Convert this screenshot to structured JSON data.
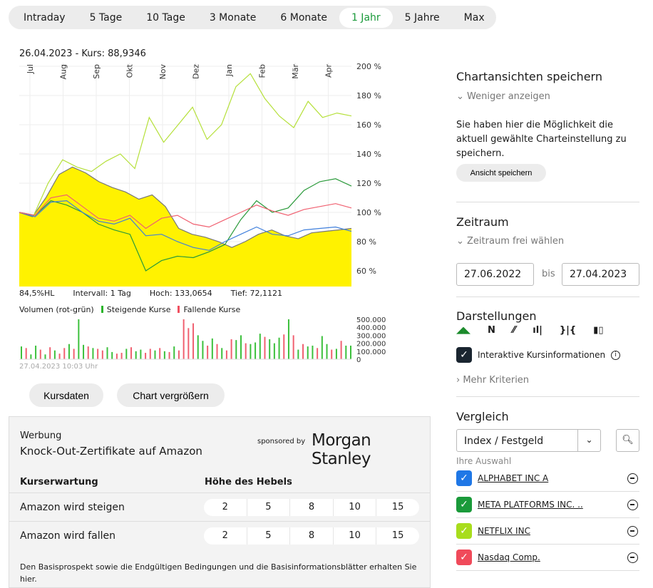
{
  "tabs": [
    "Intraday",
    "5 Tage",
    "10 Tage",
    "3 Monate",
    "6 Monate",
    "1 Jahr",
    "5 Jahre",
    "Max"
  ],
  "active_tab": "1 Jahr",
  "chart_header": "26.04.2023  - Kurs: 88,9346",
  "chart_data": {
    "type": "line",
    "x_ticks": [
      "Jul",
      "Aug",
      "Sep",
      "Okt",
      "Nov",
      "Dez",
      "Jan",
      "Feb",
      "Mär",
      "Apr"
    ],
    "y_ticks": [
      "200 %",
      "180 %",
      "160 %",
      "140 %",
      "120 %",
      "100 %",
      "80 %",
      "60 %"
    ],
    "ylim": [
      50,
      200
    ],
    "series": [
      {
        "name": "Amazon",
        "color": "#fff200",
        "line": "#777777",
        "fill": true,
        "values": [
          100,
          97,
          110,
          126,
          131,
          127,
          121,
          117,
          114,
          109,
          112,
          104,
          89,
          85,
          83,
          80,
          76,
          80,
          85,
          88,
          84,
          82,
          86,
          87,
          88,
          89
        ]
      },
      {
        "name": "NETFLIX INC",
        "color": "#b5e03a",
        "values": [
          100,
          98,
          120,
          136,
          131,
          128,
          135,
          140,
          130,
          165,
          148,
          160,
          172,
          150,
          160,
          186,
          195,
          178,
          166,
          158,
          176,
          165,
          168,
          166
        ]
      },
      {
        "name": "META PLATFORMS INC.",
        "color": "#2a9a3a",
        "values": [
          100,
          98,
          108,
          105,
          100,
          92,
          88,
          85,
          60,
          67,
          70,
          69,
          73,
          78,
          95,
          108,
          100,
          103,
          115,
          121,
          123,
          118
        ]
      },
      {
        "name": "ALPHABET INC A",
        "color": "#3f7fdc",
        "values": [
          100,
          97,
          107,
          108,
          100,
          94,
          92,
          96,
          84,
          85,
          80,
          76,
          74,
          80,
          85,
          90,
          85,
          84,
          88,
          89,
          90,
          87
        ]
      },
      {
        "name": "Nasdaq Comp.",
        "color": "#f06070",
        "values": [
          100,
          98,
          110,
          112,
          104,
          96,
          94,
          98,
          89,
          96,
          98,
          92,
          90,
          95,
          100,
          105,
          101,
          98,
          102,
          104,
          106,
          103
        ]
      }
    ],
    "volume": {
      "label": "Volumen (rot-grün)",
      "up_label": "Steigende Kurse",
      "down_label": "Fallende Kurse",
      "y_ticks": [
        "500.000",
        "400.000",
        "300.000",
        "200.000",
        "100.000",
        "0"
      ],
      "values": [
        160,
        140,
        60,
        170,
        120,
        60,
        150,
        110,
        70,
        140,
        190,
        130,
        500,
        180,
        160,
        140,
        130,
        110,
        150,
        90,
        70,
        80,
        130,
        150,
        100,
        120,
        80,
        130,
        110,
        140,
        100,
        90,
        160,
        110,
        500,
        390,
        450,
        300,
        230,
        170,
        260,
        190,
        140,
        110,
        250,
        240,
        300,
        200,
        190,
        210,
        320,
        280,
        250,
        200,
        270,
        310,
        500,
        300,
        120,
        190,
        160,
        170,
        140,
        290,
        190,
        120,
        130,
        230,
        170,
        170
      ],
      "up": [
        1,
        0,
        1,
        1,
        0,
        1,
        0,
        1,
        0,
        0,
        1,
        0,
        1,
        1,
        0,
        1,
        0,
        0,
        1,
        1,
        0,
        0,
        1,
        0,
        1,
        1,
        0,
        0,
        1,
        0,
        1,
        0,
        1,
        0,
        0,
        0,
        0,
        1,
        1,
        0,
        1,
        0,
        1,
        0,
        0,
        1,
        1,
        0,
        1,
        1,
        1,
        0,
        1,
        1,
        1,
        0,
        1,
        0,
        1,
        0,
        1,
        1,
        0,
        1,
        1,
        0,
        1,
        0,
        1,
        1
      ]
    },
    "stats": {
      "hl": "84,5%HL",
      "interval": "Intervall: 1 Tag",
      "high": "Hoch: 133,0654",
      "low": "Tief: 72,1121"
    },
    "timestamp": "27.04.2023 10:03 Uhr"
  },
  "buttons": {
    "kursdaten": "Kursdaten",
    "enlarge": "Chart vergrößern"
  },
  "ad": {
    "label": "Werbung",
    "title": "Knock-Out-Zertifikate auf Amazon",
    "sponsored": "sponsored by",
    "sponsor": "Morgan Stanley",
    "col1": "Kurserwartung",
    "col2": "Höhe des Hebels",
    "rows": [
      {
        "label": "Amazon wird steigen",
        "levers": [
          "2",
          "5",
          "8",
          "10",
          "15"
        ]
      },
      {
        "label": "Amazon wird fallen",
        "levers": [
          "2",
          "5",
          "8",
          "10",
          "15"
        ]
      }
    ],
    "footer": "Den Basisprospekt sowie die Endgültigen Bedingungen und die Basisinformationsblätter erhalten Sie hier."
  },
  "sidebar": {
    "save": {
      "title": "Chartansichten speichern",
      "toggle": "Weniger anzeigen",
      "text": "Sie haben hier die Möglichkeit die aktuell gewählte Charteinstellung zu speichern.",
      "button": "Ansicht speichern"
    },
    "period": {
      "title": "Zeitraum",
      "toggle": "Zeitraum frei wählen",
      "from": "27.06.2022",
      "bis": "bis",
      "to": "27.04.2023"
    },
    "display": {
      "title": "Darstellungen",
      "interactive": "Interaktive Kursinformationen",
      "more": "Mehr Kriterien"
    },
    "compare": {
      "title": "Vergleich",
      "select": "Index / Festgeld",
      "your_selection": "Ihre Auswahl",
      "items": [
        {
          "label": "ALPHABET INC A",
          "color": "#1f77e6"
        },
        {
          "label": "META PLATFORMS INC. ..",
          "color": "#1a9a3a"
        },
        {
          "label": "NETFLIX INC",
          "color": "#a8dd1c"
        },
        {
          "label": "Nasdaq Comp.",
          "color": "#f04a5a"
        }
      ]
    }
  }
}
